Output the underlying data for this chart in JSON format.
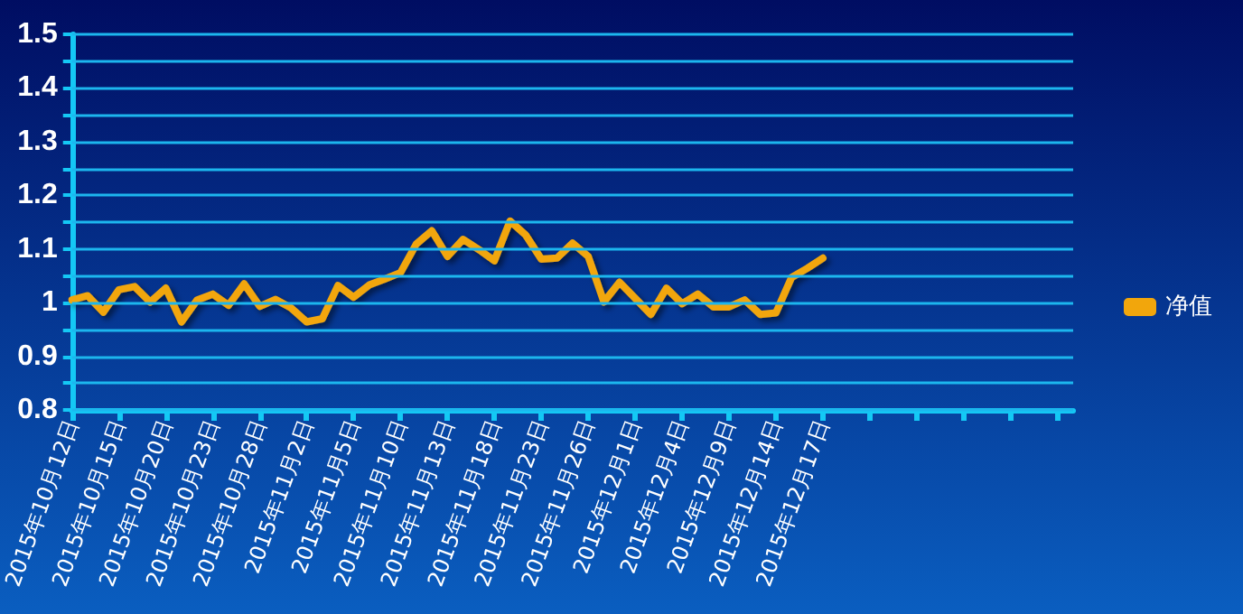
{
  "chart_data": {
    "type": "line",
    "categories": [
      "2015年10月12日",
      null,
      null,
      "2015年10月15日",
      null,
      null,
      "2015年10月20日",
      null,
      null,
      "2015年10月23日",
      null,
      null,
      "2015年10月28日",
      null,
      null,
      "2015年11月2日",
      null,
      null,
      "2015年11月5日",
      null,
      null,
      "2015年11月10日",
      null,
      null,
      "2015年11月13日",
      null,
      null,
      "2015年11月18日",
      null,
      null,
      "2015年11月23日",
      null,
      null,
      "2015年11月26日",
      null,
      null,
      "2015年12月1日",
      null,
      null,
      "2015年12月4日",
      null,
      null,
      "2015年12月9日",
      null,
      null,
      "2015年12月14日",
      null,
      null,
      "2015年12月17日",
      null,
      null,
      null,
      null,
      null,
      null,
      null,
      null,
      null,
      null,
      null,
      null,
      null,
      null,
      null,
      null
    ],
    "series": [
      {
        "name": "净值",
        "color": "#f2a60c",
        "values": [
          1.005,
          1.013,
          0.982,
          1.024,
          1.03,
          1.001,
          1.027,
          0.964,
          1.005,
          1.016,
          0.995,
          1.035,
          0.993,
          1.006,
          0.99,
          0.964,
          0.97,
          1.032,
          1.01,
          1.033,
          1.044,
          1.056,
          1.109,
          1.134,
          1.086,
          1.118,
          1.099,
          1.078,
          1.152,
          1.126,
          1.081,
          1.083,
          1.111,
          1.086,
          1.001,
          1.038,
          1.008,
          0.978,
          1.027,
          0.998,
          1.016,
          0.992,
          0.992,
          1.005,
          0.978,
          0.981,
          1.047,
          1.064,
          1.083,
          null,
          null,
          null,
          null,
          null,
          null,
          null,
          null,
          null,
          null,
          null,
          null,
          null,
          null,
          null,
          null
        ]
      }
    ],
    "ylim": [
      0.8,
      1.5
    ],
    "yticks": [
      0.8,
      {
        "value": 0.85,
        "label": null
      },
      0.9,
      {
        "value": 0.95,
        "label": null
      },
      1,
      {
        "value": 1.05,
        "label": null
      },
      1.1,
      {
        "value": 1.15,
        "label": null
      },
      1.2,
      {
        "value": 1.25,
        "label": null
      },
      1.3,
      {
        "value": 1.35,
        "label": null
      },
      1.4,
      {
        "value": 1.45,
        "label": null
      },
      1.5
    ],
    "grid": true,
    "legend": "right",
    "marker": "none",
    "line_style": "solid"
  }
}
